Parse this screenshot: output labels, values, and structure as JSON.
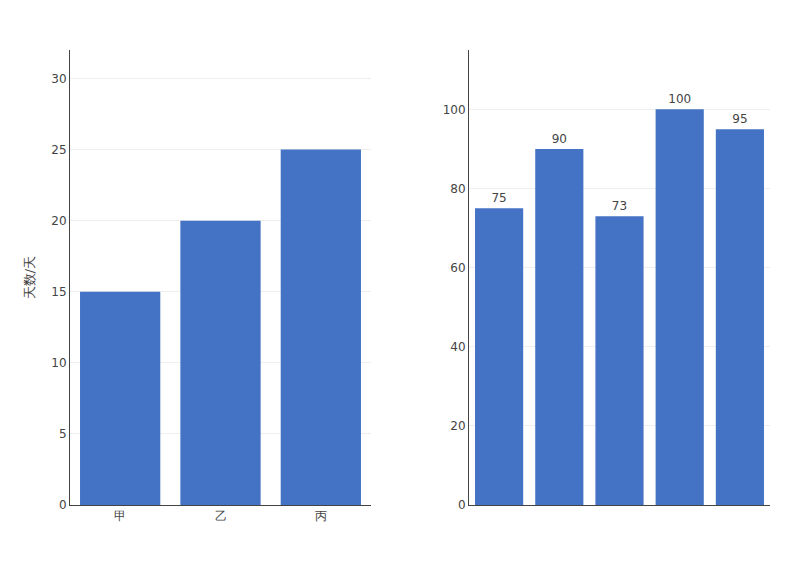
{
  "chart_data": [
    {
      "type": "bar",
      "y_label": "天数/天",
      "categories": [
        "甲",
        "乙",
        "丙"
      ],
      "values": [
        15,
        20,
        25
      ],
      "color": "#4472C4",
      "ylim": [
        0,
        32
      ],
      "yticks": [
        0,
        5,
        10,
        15,
        20,
        25,
        30
      ],
      "grid": true
    },
    {
      "type": "bar",
      "categories": [
        null,
        null,
        null,
        null,
        null
      ],
      "values": [
        75,
        90,
        73,
        100,
        95
      ],
      "color": "#4472C4",
      "ylim": [
        0,
        115
      ],
      "yticks": [
        0,
        20,
        40,
        60,
        80,
        100
      ],
      "grid": true,
      "data_labels": true,
      "tick_labels": "y"
    }
  ]
}
